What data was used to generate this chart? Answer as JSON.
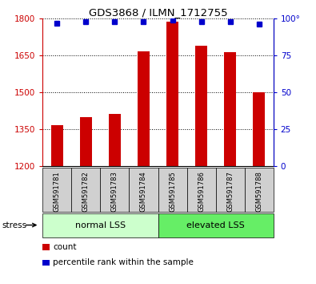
{
  "title": "GDS3868 / ILMN_1712755",
  "categories": [
    "GSM591781",
    "GSM591782",
    "GSM591783",
    "GSM591784",
    "GSM591785",
    "GSM591786",
    "GSM591787",
    "GSM591788"
  ],
  "bar_values": [
    1368,
    1398,
    1412,
    1668,
    1788,
    1688,
    1663,
    1500
  ],
  "percentile_values": [
    97,
    98,
    98,
    98,
    99,
    98,
    98,
    96
  ],
  "ylim_left": [
    1200,
    1800
  ],
  "ylim_right": [
    0,
    100
  ],
  "yticks_left": [
    1200,
    1350,
    1500,
    1650,
    1800
  ],
  "yticks_right": [
    0,
    25,
    50,
    75,
    100
  ],
  "bar_color": "#cc0000",
  "dot_color": "#0000cc",
  "group_labels": [
    "normal LSS",
    "elevated LSS"
  ],
  "group_colors_light": [
    "#ccffcc",
    "#ccffcc"
  ],
  "group_colors_dark": [
    "#ccffcc",
    "#66ee66"
  ],
  "group_ranges": [
    [
      0,
      4
    ],
    [
      4,
      8
    ]
  ],
  "stress_label": "stress",
  "legend_items": [
    {
      "label": "count",
      "color": "#cc0000"
    },
    {
      "label": "percentile rank within the sample",
      "color": "#0000cc"
    }
  ],
  "tick_label_color_left": "#cc0000",
  "tick_label_color_right": "#0000cc",
  "bar_bottom": 1200,
  "sample_bg_color": "#d0d0d0",
  "bar_width": 0.4
}
